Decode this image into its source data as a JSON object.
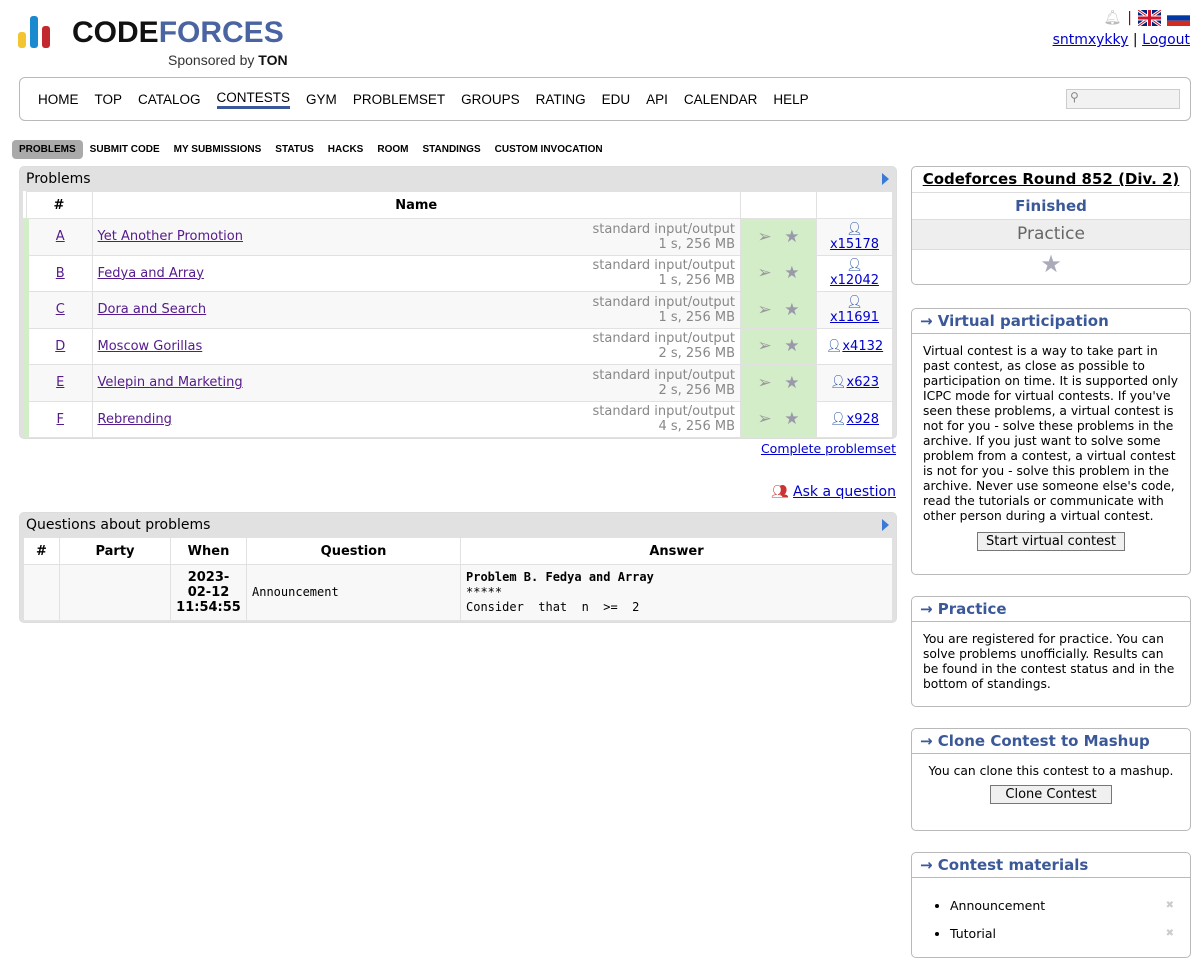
{
  "header": {
    "logo_text_1": "CODE",
    "logo_text_2": "FORCES",
    "sponsor": "Sponsored by",
    "sponsor_brand": "TON",
    "username": "sntmxykky",
    "logout": "Logout",
    "separator": "|"
  },
  "menu": [
    "HOME",
    "TOP",
    "CATALOG",
    "CONTESTS",
    "GYM",
    "PROBLEMSET",
    "GROUPS",
    "RATING",
    "EDU",
    "API",
    "CALENDAR",
    "HELP"
  ],
  "menu_active": "CONTESTS",
  "search": {
    "placeholder": ""
  },
  "subnav": [
    "PROBLEMS",
    "SUBMIT CODE",
    "MY SUBMISSIONS",
    "STATUS",
    "HACKS",
    "ROOM",
    "STANDINGS",
    "CUSTOM INVOCATION"
  ],
  "problems": {
    "title": "Problems",
    "headers": {
      "index": "#",
      "name": "Name"
    },
    "rows": [
      {
        "index": "A",
        "name": "Yet Another Promotion",
        "io": "standard input/output",
        "limits": "1 s, 256 MB",
        "solved": "x15178"
      },
      {
        "index": "B",
        "name": "Fedya and Array",
        "io": "standard input/output",
        "limits": "1 s, 256 MB",
        "solved": "x12042"
      },
      {
        "index": "C",
        "name": "Dora and Search",
        "io": "standard input/output",
        "limits": "1 s, 256 MB",
        "solved": "x11691"
      },
      {
        "index": "D",
        "name": "Moscow Gorillas",
        "io": "standard input/output",
        "limits": "2 s, 256 MB",
        "solved": "x4132"
      },
      {
        "index": "E",
        "name": "Velepin and Marketing",
        "io": "standard input/output",
        "limits": "2 s, 256 MB",
        "solved": "x623"
      },
      {
        "index": "F",
        "name": "Rebrending",
        "io": "standard input/output",
        "limits": "4 s, 256 MB",
        "solved": "x928"
      }
    ],
    "complete_link": "Complete problemset"
  },
  "ask": "Ask a question",
  "questions": {
    "title": "Questions about problems",
    "headers": [
      "#",
      "Party",
      "When",
      "Question",
      "Answer"
    ],
    "rows": [
      {
        "index": "",
        "party": "",
        "when": "2023-02-12 11:54:55",
        "question": "Announcement",
        "answer_line1": "Problem B. Fedya and Array",
        "answer_line2": "*****",
        "answer_line3": "Consider  that  n  >=  2"
      }
    ]
  },
  "contest": {
    "name": "Codeforces Round 852 (Div. 2)",
    "status": "Finished",
    "mode": "Practice"
  },
  "virtual": {
    "title": "→ Virtual participation",
    "text": "Virtual contest is a way to take part in past contest, as close as possible to participation on time. It is supported only ICPC mode for virtual contests. If you've seen these problems, a virtual contest is not for you - solve these problems in the archive. If you just want to solve some problem from a contest, a virtual contest is not for you - solve this problem in the archive. Never use someone else's code, read the tutorials or communicate with other person during a virtual contest.",
    "button": "Start virtual contest"
  },
  "practice": {
    "title": "→ Practice",
    "text": "You are registered for practice. You can solve problems unofficially. Results can be found in the contest status and in the bottom of standings."
  },
  "clone": {
    "title": "→ Clone Contest to Mashup",
    "text": "You can clone this contest to a mashup.",
    "button": "Clone Contest"
  },
  "materials": {
    "title": "→ Contest materials",
    "items": [
      "Announcement",
      "Tutorial"
    ]
  },
  "colors": {
    "accent": "#3b5998",
    "accepted": "#d4edc9",
    "link": "#0000cc"
  }
}
